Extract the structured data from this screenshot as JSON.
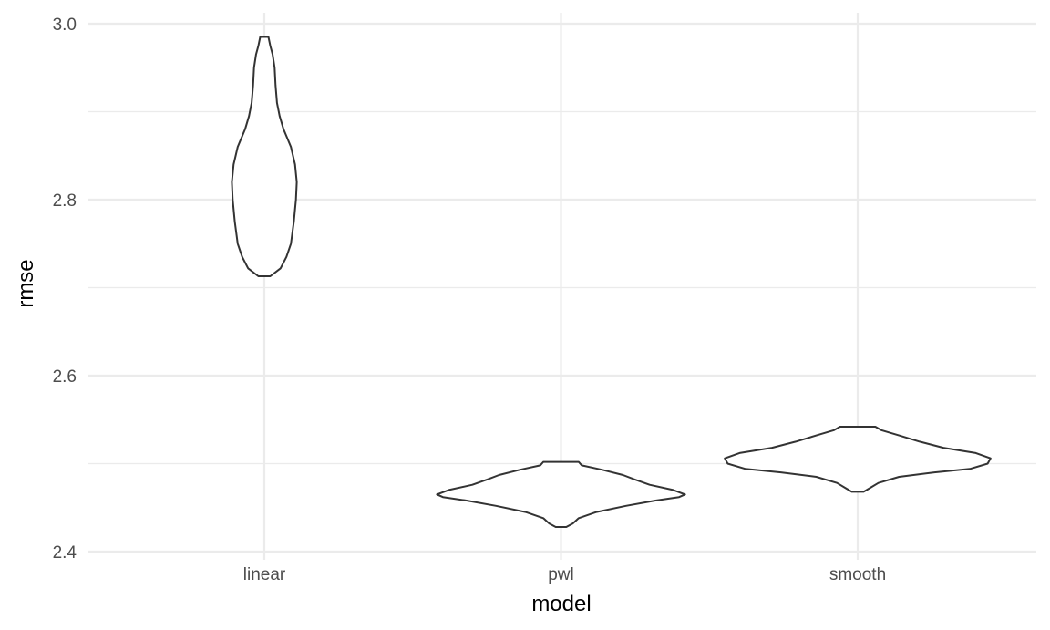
{
  "chart_data": {
    "type": "violin",
    "title": "",
    "xlabel": "model",
    "ylabel": "rmse",
    "categories": [
      "linear",
      "pwl",
      "smooth"
    ],
    "ylim": [
      2.4,
      3.0
    ],
    "y_ticks": [
      "2.4",
      "2.6",
      "2.8",
      "3.0"
    ],
    "y_tick_values": [
      2.4,
      2.6,
      2.8,
      3.0
    ],
    "y_minor_ticks": [
      2.5,
      2.7,
      2.9
    ],
    "grid": true,
    "legend": "none",
    "line_color": "#333333",
    "grid_color": "#ebebeb",
    "violins": [
      {
        "category": "linear",
        "min": 2.713,
        "max": 2.985,
        "profile": [
          [
            2.713,
            0.02
          ],
          [
            2.722,
            0.055
          ],
          [
            2.735,
            0.075
          ],
          [
            2.75,
            0.09
          ],
          [
            2.775,
            0.1
          ],
          [
            2.8,
            0.107
          ],
          [
            2.82,
            0.11
          ],
          [
            2.84,
            0.104
          ],
          [
            2.86,
            0.09
          ],
          [
            2.88,
            0.065
          ],
          [
            2.895,
            0.052
          ],
          [
            2.91,
            0.043
          ],
          [
            2.93,
            0.038
          ],
          [
            2.95,
            0.035
          ],
          [
            2.965,
            0.028
          ],
          [
            2.975,
            0.02
          ],
          [
            2.985,
            0.014
          ]
        ]
      },
      {
        "category": "pwl",
        "min": 2.428,
        "max": 2.502,
        "profile": [
          [
            2.428,
            0.018
          ],
          [
            2.432,
            0.04
          ],
          [
            2.438,
            0.06
          ],
          [
            2.445,
            0.12
          ],
          [
            2.452,
            0.22
          ],
          [
            2.458,
            0.32
          ],
          [
            2.462,
            0.4
          ],
          [
            2.465,
            0.42
          ],
          [
            2.47,
            0.38
          ],
          [
            2.476,
            0.3
          ],
          [
            2.482,
            0.25
          ],
          [
            2.487,
            0.21
          ],
          [
            2.493,
            0.14
          ],
          [
            2.498,
            0.07
          ],
          [
            2.502,
            0.06
          ]
        ]
      },
      {
        "category": "smooth",
        "min": 2.468,
        "max": 2.542,
        "profile": [
          [
            2.468,
            0.02
          ],
          [
            2.472,
            0.04
          ],
          [
            2.478,
            0.07
          ],
          [
            2.485,
            0.14
          ],
          [
            2.49,
            0.26
          ],
          [
            2.494,
            0.38
          ],
          [
            2.5,
            0.44
          ],
          [
            2.506,
            0.45
          ],
          [
            2.512,
            0.4
          ],
          [
            2.518,
            0.29
          ],
          [
            2.525,
            0.21
          ],
          [
            2.532,
            0.14
          ],
          [
            2.538,
            0.08
          ],
          [
            2.542,
            0.06
          ]
        ]
      }
    ]
  }
}
